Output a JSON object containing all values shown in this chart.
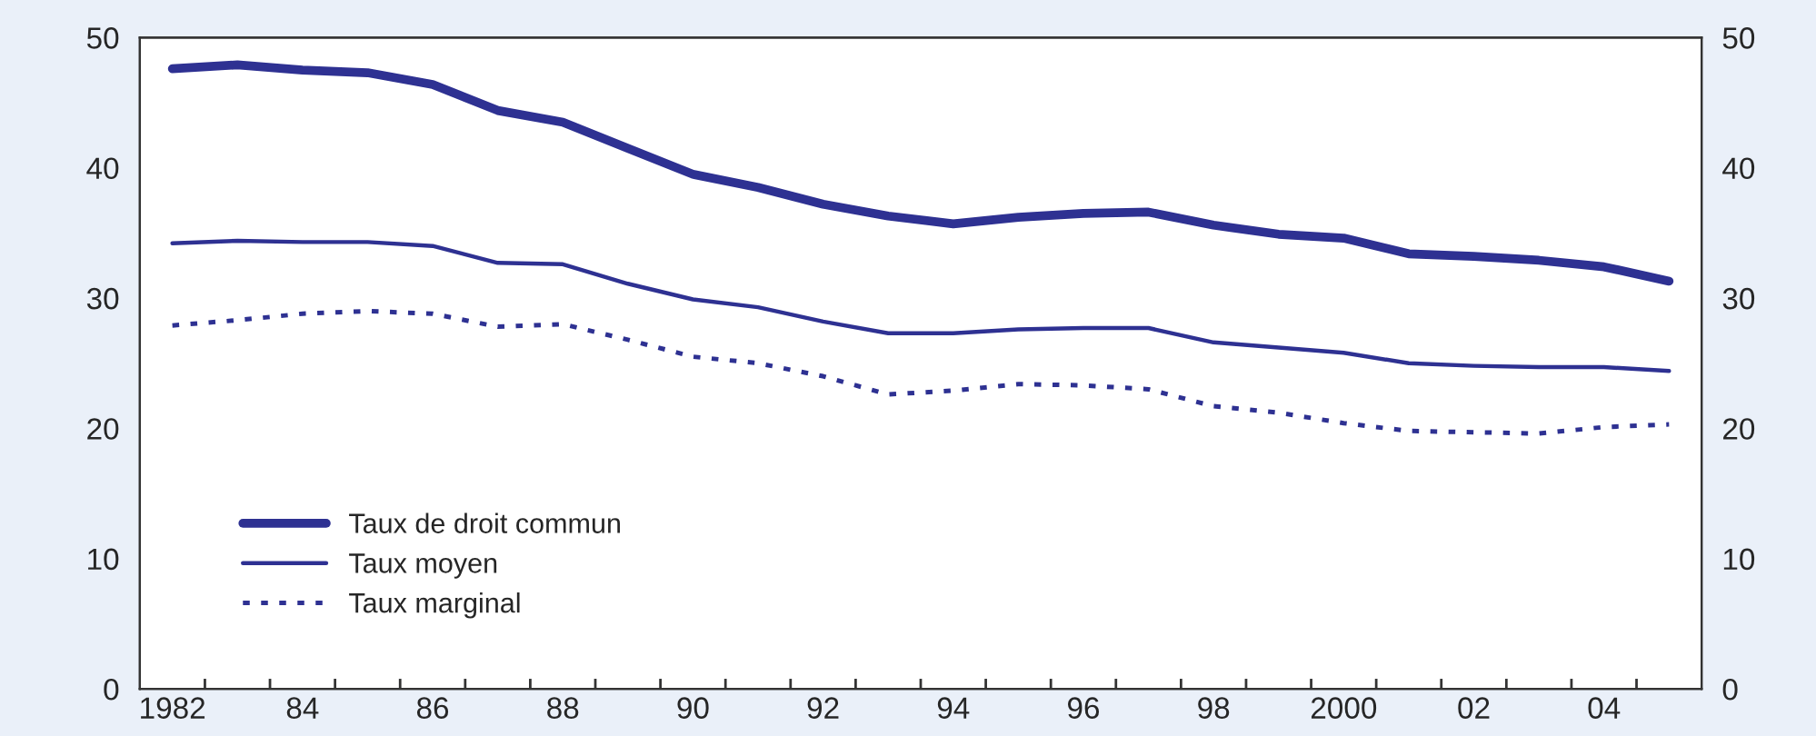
{
  "chart_data": {
    "type": "line",
    "x": [
      1982,
      1983,
      1984,
      1985,
      1986,
      1987,
      1988,
      1989,
      1990,
      1991,
      1992,
      1993,
      1994,
      1995,
      1996,
      1997,
      1998,
      1999,
      2000,
      2001,
      2002,
      2003,
      2004,
      2005
    ],
    "series": [
      {
        "name": "Taux de droit commun",
        "color": "#2e3192",
        "line_style": "solid",
        "values": [
          47.6,
          47.9,
          47.5,
          47.3,
          46.4,
          44.4,
          43.5,
          41.5,
          39.5,
          38.5,
          37.2,
          36.3,
          35.7,
          36.2,
          36.5,
          36.6,
          35.6,
          34.9,
          34.6,
          33.4,
          33.2,
          32.9,
          32.4,
          31.3
        ]
      },
      {
        "name": "Taux moyen",
        "color": "#2e3192",
        "line_style": "solid",
        "values": [
          34.2,
          34.4,
          34.3,
          34.3,
          34.0,
          32.7,
          32.6,
          31.1,
          29.9,
          29.3,
          28.2,
          27.3,
          27.3,
          27.6,
          27.7,
          27.7,
          26.6,
          26.2,
          25.8,
          25.0,
          24.8,
          24.7,
          24.7,
          24.4
        ]
      },
      {
        "name": "Taux marginal",
        "color": "#2e3192",
        "line_style": "dotted",
        "values": [
          27.9,
          28.3,
          28.8,
          29.0,
          28.8,
          27.8,
          28.0,
          26.8,
          25.5,
          25.0,
          24.0,
          22.6,
          22.9,
          23.4,
          23.3,
          23.0,
          21.7,
          21.2,
          20.4,
          19.8,
          19.7,
          19.6,
          20.1,
          20.3
        ]
      }
    ],
    "xlim": [
      1981.5,
      2005.5
    ],
    "xticks": [
      {
        "value": 1982,
        "label": "1982"
      },
      {
        "value": 1984,
        "label": "84"
      },
      {
        "value": 1986,
        "label": "86"
      },
      {
        "value": 1988,
        "label": "88"
      },
      {
        "value": 1990,
        "label": "90"
      },
      {
        "value": 1992,
        "label": "92"
      },
      {
        "value": 1994,
        "label": "94"
      },
      {
        "value": 1996,
        "label": "96"
      },
      {
        "value": 1998,
        "label": "98"
      },
      {
        "value": 2000,
        "label": "2000"
      },
      {
        "value": 2002,
        "label": "02"
      },
      {
        "value": 2004,
        "label": "04"
      },
      {
        "value": 1982.5,
        "label": null
      },
      {
        "value": 1983.5,
        "label": null
      },
      {
        "value": 1984.5,
        "label": null
      },
      {
        "value": 1985.5,
        "label": null
      },
      {
        "value": 1986.5,
        "label": null
      },
      {
        "value": 1987.5,
        "label": null
      },
      {
        "value": 1988.5,
        "label": null
      },
      {
        "value": 1989.5,
        "label": null
      },
      {
        "value": 1990.5,
        "label": null
      },
      {
        "value": 1991.5,
        "label": null
      },
      {
        "value": 1992.5,
        "label": null
      },
      {
        "value": 1993.5,
        "label": null
      },
      {
        "value": 1994.5,
        "label": null
      },
      {
        "value": 1995.5,
        "label": null
      },
      {
        "value": 1996.5,
        "label": null
      },
      {
        "value": 1997.5,
        "label": null
      },
      {
        "value": 1998.5,
        "label": null
      },
      {
        "value": 1999.5,
        "label": null
      },
      {
        "value": 2000.5,
        "label": null
      },
      {
        "value": 2001.5,
        "label": null
      },
      {
        "value": 2002.5,
        "label": null
      },
      {
        "value": 2003.5,
        "label": null
      },
      {
        "value": 2004.5,
        "label": null
      }
    ],
    "ylim": [
      0,
      50
    ],
    "yticks": [
      0,
      10,
      20,
      30,
      40,
      50
    ],
    "y2lim": [
      0,
      50
    ],
    "y2ticks": [
      0,
      10,
      20,
      30,
      40,
      50
    ],
    "grid": false,
    "legend": "bottom left"
  }
}
